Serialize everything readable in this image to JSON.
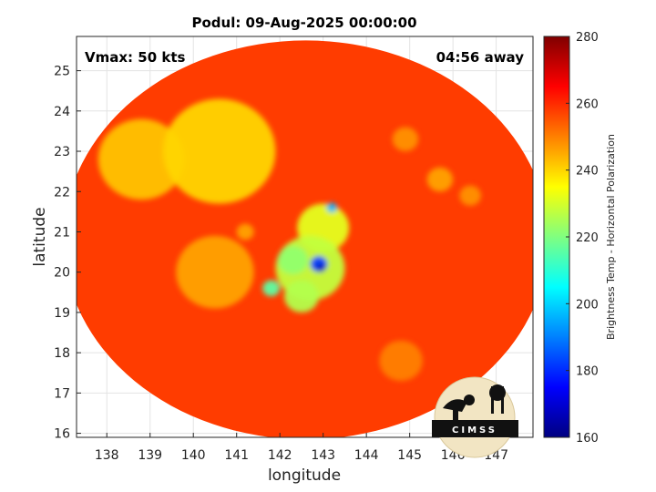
{
  "chart_data": {
    "type": "heatmap",
    "title": "Podul: 09-Aug-2025 00:00:00",
    "xlabel": "longitude",
    "ylabel": "latitude",
    "xlim": [
      137.3,
      147.85
    ],
    "ylim": [
      15.9,
      25.85
    ],
    "xticks": [
      138,
      139,
      140,
      141,
      142,
      143,
      144,
      145,
      146,
      147
    ],
    "yticks": [
      16,
      17,
      18,
      19,
      20,
      21,
      22,
      23,
      24,
      25
    ],
    "grid": true,
    "annotations": {
      "vmax": "Vmax: 50 kts",
      "time_offset": "04:56 away"
    },
    "colorbar": {
      "label": "Brightness Temp - Horizontal Polarization",
      "range": [
        160,
        280
      ],
      "ticks": [
        160,
        180,
        200,
        220,
        240,
        260,
        280
      ],
      "colormap": "jet"
    },
    "swath": {
      "center_lon": 142.6,
      "center_lat": 20.8,
      "radius_lon": 5.6,
      "radius_lat": 4.95
    },
    "background_tb": 258,
    "features": [
      {
        "lon": 140.6,
        "lat": 23.0,
        "tb": 240,
        "sigma": 1.3
      },
      {
        "lon": 138.8,
        "lat": 22.8,
        "tb": 242,
        "sigma": 1.0
      },
      {
        "lon": 140.5,
        "lat": 20.0,
        "tb": 246,
        "sigma": 0.9
      },
      {
        "lon": 142.7,
        "lat": 20.1,
        "tb": 228,
        "sigma": 0.8
      },
      {
        "lon": 143.0,
        "lat": 21.1,
        "tb": 232,
        "sigma": 0.6
      },
      {
        "lon": 142.5,
        "lat": 19.4,
        "tb": 226,
        "sigma": 0.4
      },
      {
        "lon": 142.3,
        "lat": 20.3,
        "tb": 222,
        "sigma": 0.35
      },
      {
        "lon": 142.9,
        "lat": 20.2,
        "tb": 182,
        "sigma": 0.2
      },
      {
        "lon": 142.95,
        "lat": 20.1,
        "tb": 166,
        "sigma": 0.1
      },
      {
        "lon": 143.2,
        "lat": 21.6,
        "tb": 196,
        "sigma": 0.12
      },
      {
        "lon": 141.8,
        "lat": 19.6,
        "tb": 216,
        "sigma": 0.2
      },
      {
        "lon": 144.9,
        "lat": 23.3,
        "tb": 248,
        "sigma": 0.3
      },
      {
        "lon": 145.7,
        "lat": 22.3,
        "tb": 246,
        "sigma": 0.3
      },
      {
        "lon": 146.4,
        "lat": 21.9,
        "tb": 248,
        "sigma": 0.25
      },
      {
        "lon": 144.8,
        "lat": 17.8,
        "tb": 250,
        "sigma": 0.5
      },
      {
        "lon": 141.2,
        "lat": 21.0,
        "tb": 246,
        "sigma": 0.2
      }
    ]
  },
  "logo": {
    "text": "CIMSS"
  }
}
